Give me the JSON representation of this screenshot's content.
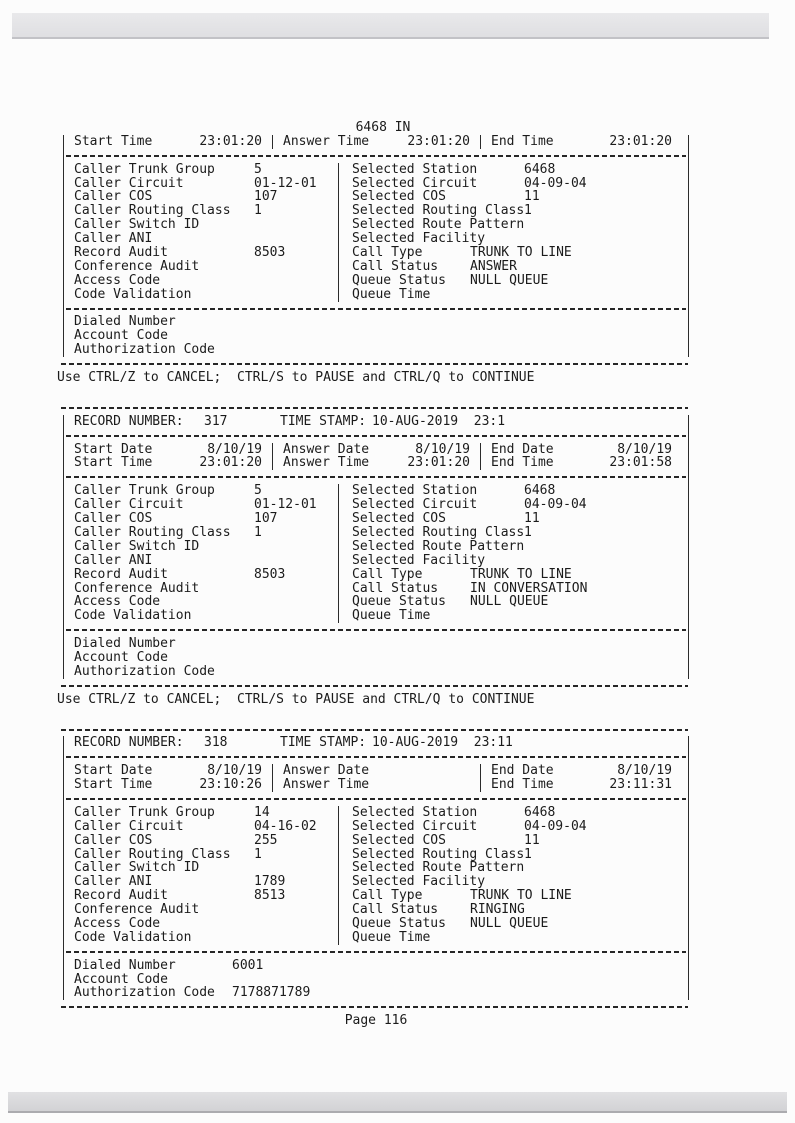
{
  "labels": {
    "record_number": "RECORD NUMBER:",
    "time_stamp": "TIME STAMP:",
    "start_date": "Start Date",
    "answer_date": "Answer Date",
    "end_date": "End Date",
    "start_time": "Start Time",
    "answer_time": "Answer Time",
    "end_time": "End Time",
    "caller": [
      "Caller Trunk Group",
      "Caller Circuit",
      "Caller COS",
      "Caller Routing Class",
      "Caller Switch ID",
      "Caller ANI",
      "Record Audit",
      "Conference Audit",
      "Access Code",
      "Code Validation"
    ],
    "selected": [
      "Selected Station",
      "Selected Circuit",
      "Selected COS",
      "Selected Routing Class",
      "Selected Route Pattern",
      "Selected Facility",
      "Call Type",
      "Call Status",
      "Queue Status",
      "Queue Time"
    ],
    "footer": [
      "Dialed Number",
      "Account Code",
      "Authorization Code"
    ]
  },
  "prompt": "Use CTRL/Z to CANCEL;  CTRL/S to PAUSE and CTRL/Q to CONTINUE",
  "page_footer": "Page 116",
  "records": [
    {
      "title": "6468 IN",
      "times": {
        "start": "23:01:20",
        "answer": "23:01:20",
        "end": "23:01:20"
      },
      "caller_values": [
        "5",
        "01-12-01",
        "107",
        "1",
        "",
        "",
        "8503",
        "",
        "",
        ""
      ],
      "selected_values": [
        "6468",
        "04-09-04",
        "11",
        "1",
        "",
        "",
        "TRUNK TO LINE",
        "ANSWER",
        "NULL QUEUE",
        ""
      ],
      "footer_values": [
        "",
        "",
        ""
      ]
    },
    {
      "record_number": "317",
      "time_stamp": "10-AUG-2019  23:1",
      "dates": {
        "start": "8/10/19",
        "answer": "8/10/19",
        "end": "8/10/19"
      },
      "times": {
        "start": "23:01:20",
        "answer": "23:01:20",
        "end": "23:01:58"
      },
      "caller_values": [
        "5",
        "01-12-01",
        "107",
        "1",
        "",
        "",
        "8503",
        "",
        "",
        ""
      ],
      "selected_values": [
        "6468",
        "04-09-04",
        "11",
        "1",
        "",
        "",
        "TRUNK TO LINE",
        "IN CONVERSATION",
        "NULL QUEUE",
        ""
      ],
      "footer_values": [
        "",
        "",
        ""
      ]
    },
    {
      "record_number": "318",
      "time_stamp": "10-AUG-2019  23:11",
      "dates": {
        "start": "8/10/19",
        "answer": "",
        "end": "8/10/19"
      },
      "times": {
        "start": "23:10:26",
        "answer": "",
        "end": "23:11:31"
      },
      "caller_values": [
        "14",
        "04-16-02",
        "255",
        "1",
        "",
        "1789",
        "8513",
        "",
        "",
        ""
      ],
      "selected_values": [
        "6468",
        "04-09-04",
        "11",
        "1",
        "",
        "",
        "TRUNK TO LINE",
        "RINGING",
        "NULL QUEUE",
        ""
      ],
      "footer_values": [
        "6001",
        "",
        "7178871789"
      ]
    }
  ]
}
